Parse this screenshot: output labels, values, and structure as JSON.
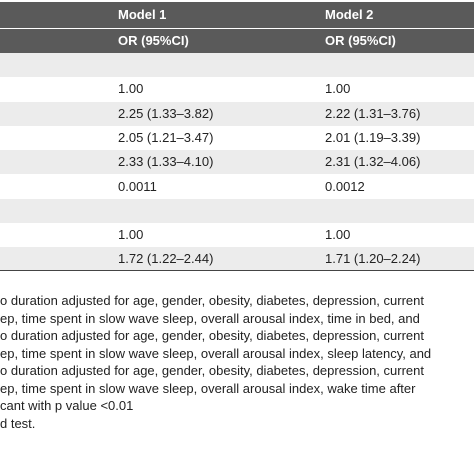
{
  "table": {
    "header": [
      "Model 1",
      "Model 2"
    ],
    "subheader": [
      "OR (95%CI)",
      "OR (95%CI)"
    ],
    "rows": [
      null,
      [
        "1.00",
        "1.00"
      ],
      [
        "2.25 (1.33–3.82)",
        "2.22 (1.31–3.76)"
      ],
      [
        "2.05 (1.21–3.47)",
        "2.01 (1.19–3.39)"
      ],
      [
        "2.33 (1.33–4.10)",
        "2.31 (1.32–4.06)"
      ],
      [
        "0.0011",
        "0.0012"
      ],
      null,
      [
        "1.00",
        "1.00"
      ],
      [
        "1.72 (1.22–2.44)",
        "1.71 (1.20–2.24)"
      ]
    ]
  },
  "footnotes": [
    "o duration adjusted for age, gender, obesity, diabetes, depression, current",
    "ep, time spent in slow wave sleep, overall arousal index, time in bed, and",
    "o duration adjusted for age, gender, obesity, diabetes, depression, current",
    "ep, time spent in slow wave sleep, overall arousal index, sleep latency, and",
    "o duration adjusted for age, gender, obesity, diabetes, depression, current",
    "ep, time spent in slow wave sleep, overall arousal index, wake time after",
    "cant with p value <0.01",
    "d test."
  ]
}
